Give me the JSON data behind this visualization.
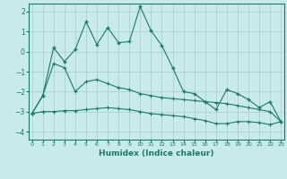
{
  "title": "",
  "xlabel": "Humidex (Indice chaleur)",
  "ylabel": "",
  "background_color": "#c8eaea",
  "line_color": "#1a7a6a",
  "grid_color": "#a8cccc",
  "x_ticks": [
    0,
    1,
    2,
    3,
    4,
    5,
    6,
    7,
    8,
    9,
    10,
    11,
    12,
    13,
    14,
    15,
    16,
    17,
    18,
    19,
    20,
    21,
    22,
    23
  ],
  "y_ticks": [
    -4,
    -3,
    -2,
    -1,
    0,
    1,
    2
  ],
  "ylim": [
    -4.4,
    2.4
  ],
  "xlim": [
    -0.3,
    23.3
  ],
  "line1_x": [
    0,
    1,
    2,
    3,
    4,
    5,
    6,
    7,
    8,
    9,
    10,
    11,
    12,
    13,
    14,
    15,
    16,
    17,
    18,
    19,
    20,
    21,
    22,
    23
  ],
  "line1_y": [
    -3.1,
    -2.2,
    0.2,
    -0.5,
    0.1,
    1.5,
    0.35,
    1.2,
    0.45,
    0.5,
    2.25,
    1.05,
    0.3,
    -0.8,
    -2.0,
    -2.1,
    -2.5,
    -2.9,
    -1.9,
    -2.1,
    -2.4,
    -2.8,
    -2.5,
    -3.5
  ],
  "line2_x": [
    0,
    1,
    2,
    3,
    4,
    5,
    6,
    7,
    8,
    9,
    10,
    11,
    12,
    13,
    14,
    15,
    16,
    17,
    18,
    19,
    20,
    21,
    22,
    23
  ],
  "line2_y": [
    -3.1,
    -2.2,
    -0.6,
    -0.8,
    -2.0,
    -1.5,
    -1.4,
    -1.6,
    -1.8,
    -1.9,
    -2.1,
    -2.2,
    -2.3,
    -2.35,
    -2.4,
    -2.45,
    -2.5,
    -2.55,
    -2.6,
    -2.7,
    -2.8,
    -2.9,
    -3.0,
    -3.5
  ],
  "line3_x": [
    0,
    1,
    2,
    3,
    4,
    5,
    6,
    7,
    8,
    9,
    10,
    11,
    12,
    13,
    14,
    15,
    16,
    17,
    18,
    19,
    20,
    21,
    22,
    23
  ],
  "line3_y": [
    -3.1,
    -3.0,
    -3.0,
    -2.95,
    -2.95,
    -2.9,
    -2.85,
    -2.8,
    -2.85,
    -2.9,
    -3.0,
    -3.1,
    -3.15,
    -3.2,
    -3.25,
    -3.35,
    -3.45,
    -3.6,
    -3.6,
    -3.5,
    -3.5,
    -3.55,
    -3.65,
    -3.5
  ]
}
